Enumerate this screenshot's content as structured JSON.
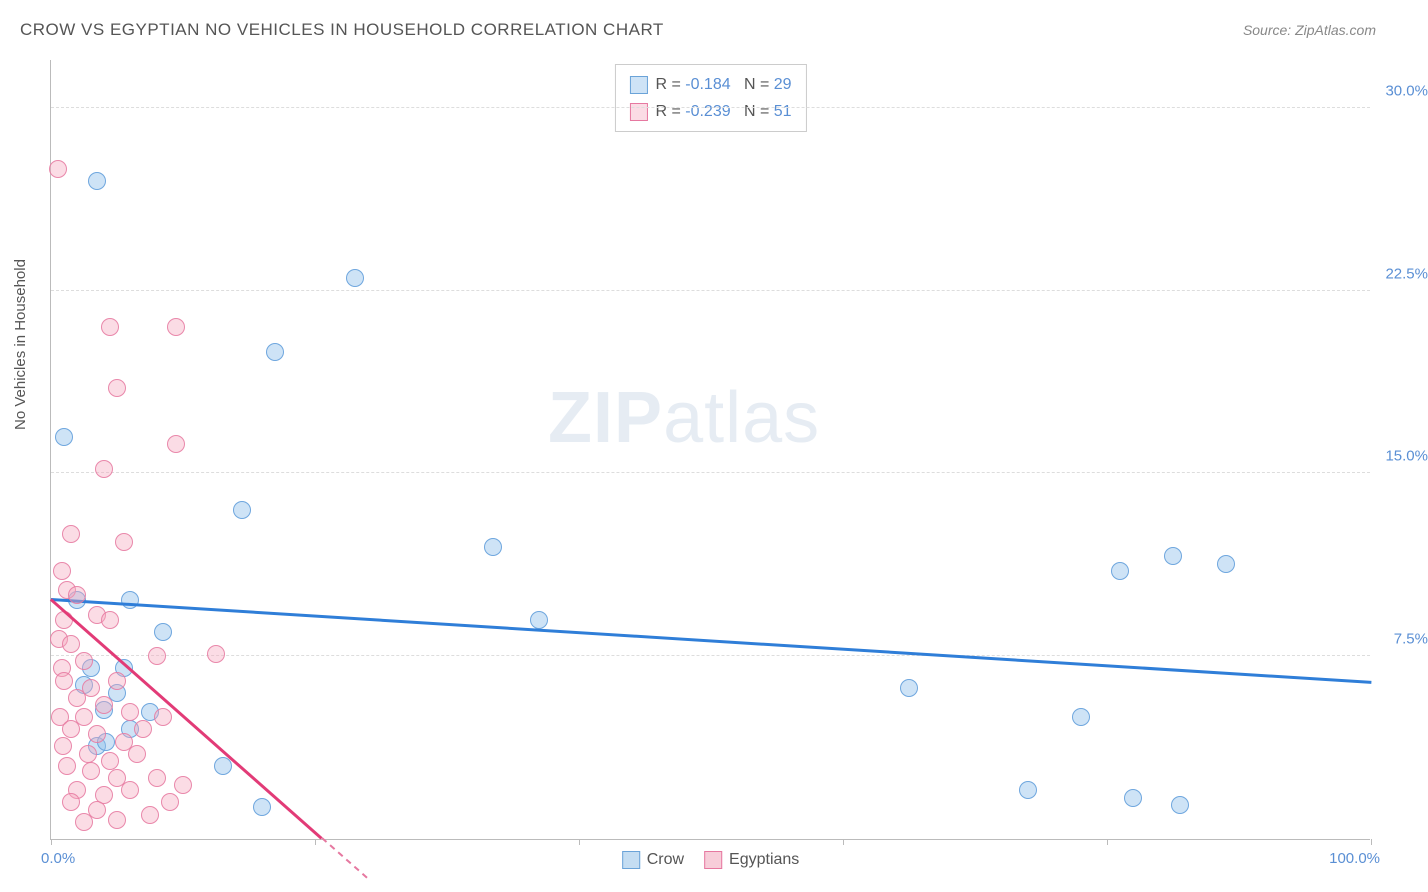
{
  "title": "CROW VS EGYPTIAN NO VEHICLES IN HOUSEHOLD CORRELATION CHART",
  "source": "Source: ZipAtlas.com",
  "ylabel": "No Vehicles in Household",
  "watermark_a": "ZIP",
  "watermark_b": "atlas",
  "chart": {
    "type": "scatter",
    "xlim": [
      0,
      100
    ],
    "ylim": [
      0,
      32
    ],
    "ytick_values": [
      7.5,
      15.0,
      22.5,
      30.0
    ],
    "ytick_labels": [
      "7.5%",
      "15.0%",
      "22.5%",
      "30.0%"
    ],
    "ytick_color": "#5a8fd4",
    "xtick_positions": [
      0,
      20,
      40,
      60,
      80,
      100
    ],
    "xaxis_left_label": "0.0%",
    "xaxis_right_label": "100.0%",
    "xaxis_label_color": "#5a8fd4",
    "background_color": "#ffffff",
    "grid_color": "#dddddd",
    "point_radius": 9,
    "series": [
      {
        "name": "Crow",
        "color_fill": "rgba(147,192,234,0.45)",
        "color_stroke": "#6aa3d8",
        "trend_color": "#2f7ed8",
        "R": "-0.184",
        "N": "29",
        "trend": {
          "x1": 0,
          "y1": 9.8,
          "x2": 100,
          "y2": 6.4
        },
        "points": [
          [
            3.5,
            27.0
          ],
          [
            1.0,
            16.5
          ],
          [
            23.0,
            23.0
          ],
          [
            17.0,
            20.0
          ],
          [
            14.5,
            13.5
          ],
          [
            2.0,
            9.8
          ],
          [
            6.0,
            9.8
          ],
          [
            8.5,
            8.5
          ],
          [
            33.5,
            12.0
          ],
          [
            37.0,
            9.0
          ],
          [
            3.0,
            7.0
          ],
          [
            5.5,
            7.0
          ],
          [
            4.0,
            5.3
          ],
          [
            6.0,
            4.5
          ],
          [
            3.5,
            3.8
          ],
          [
            13.0,
            3.0
          ],
          [
            16.0,
            1.3
          ],
          [
            65.0,
            6.2
          ],
          [
            78.0,
            5.0
          ],
          [
            74.0,
            2.0
          ],
          [
            82.0,
            1.7
          ],
          [
            85.5,
            1.4
          ],
          [
            81.0,
            11.0
          ],
          [
            85.0,
            11.6
          ],
          [
            89.0,
            11.3
          ],
          [
            2.5,
            6.3
          ],
          [
            5.0,
            6.0
          ],
          [
            4.2,
            4.0
          ],
          [
            7.5,
            5.2
          ]
        ]
      },
      {
        "name": "Egyptians",
        "color_fill": "rgba(244,168,190,0.4)",
        "color_stroke": "#e678a0",
        "trend_color": "#e23b77",
        "R": "-0.239",
        "N": "51",
        "trend": {
          "x1": 0,
          "y1": 9.8,
          "x2": 20.5,
          "y2": 0
        },
        "points": [
          [
            0.5,
            27.5
          ],
          [
            4.5,
            21.0
          ],
          [
            9.5,
            21.0
          ],
          [
            5.0,
            18.5
          ],
          [
            9.5,
            16.2
          ],
          [
            4.0,
            15.2
          ],
          [
            1.5,
            12.5
          ],
          [
            5.5,
            12.2
          ],
          [
            0.8,
            11.0
          ],
          [
            1.2,
            10.2
          ],
          [
            2.0,
            10.0
          ],
          [
            1.0,
            9.0
          ],
          [
            0.6,
            8.2
          ],
          [
            3.5,
            9.2
          ],
          [
            4.5,
            9.0
          ],
          [
            1.5,
            8.0
          ],
          [
            0.8,
            7.0
          ],
          [
            2.5,
            7.3
          ],
          [
            8.0,
            7.5
          ],
          [
            12.5,
            7.6
          ],
          [
            1.0,
            6.5
          ],
          [
            3.0,
            6.2
          ],
          [
            5.0,
            6.5
          ],
          [
            2.0,
            5.8
          ],
          [
            4.0,
            5.5
          ],
          [
            0.7,
            5.0
          ],
          [
            2.5,
            5.0
          ],
          [
            6.0,
            5.2
          ],
          [
            8.5,
            5.0
          ],
          [
            1.5,
            4.5
          ],
          [
            3.5,
            4.3
          ],
          [
            5.5,
            4.0
          ],
          [
            7.0,
            4.5
          ],
          [
            0.9,
            3.8
          ],
          [
            2.8,
            3.5
          ],
          [
            4.5,
            3.2
          ],
          [
            6.5,
            3.5
          ],
          [
            1.2,
            3.0
          ],
          [
            3.0,
            2.8
          ],
          [
            5.0,
            2.5
          ],
          [
            8.0,
            2.5
          ],
          [
            2.0,
            2.0
          ],
          [
            4.0,
            1.8
          ],
          [
            6.0,
            2.0
          ],
          [
            10.0,
            2.2
          ],
          [
            1.5,
            1.5
          ],
          [
            3.5,
            1.2
          ],
          [
            5.0,
            0.8
          ],
          [
            7.5,
            1.0
          ],
          [
            9.0,
            1.5
          ],
          [
            2.5,
            0.7
          ]
        ]
      }
    ],
    "legend_top": {
      "label_R": "R =",
      "label_N": "N ="
    },
    "legend_bottom": [
      {
        "label": "Crow",
        "fill": "#c4ddf2",
        "stroke": "#6aa3d8"
      },
      {
        "label": "Egyptians",
        "fill": "#f7cdd9",
        "stroke": "#e678a0"
      }
    ]
  }
}
